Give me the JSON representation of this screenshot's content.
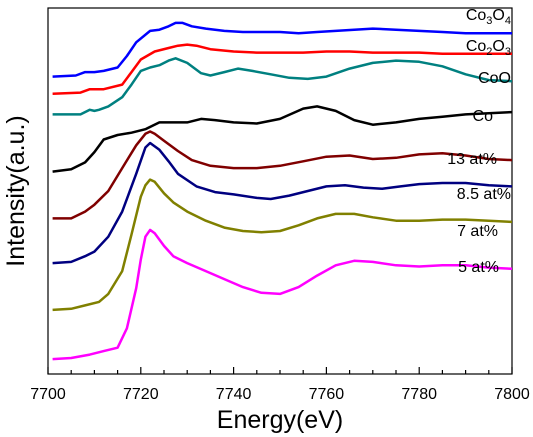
{
  "chart_data": {
    "type": "line",
    "title": "",
    "xlabel": "Energy(eV)",
    "ylabel": "Intensity(a.u.)",
    "xlim": [
      7700,
      7800
    ],
    "xticks": [
      7700,
      7720,
      7740,
      7760,
      7780,
      7800
    ],
    "y_tick_labels": "none",
    "grid": false,
    "legend": "inline labels at right",
    "series": [
      {
        "name": "Co3O4",
        "label_main": "Co",
        "label_sub": [
          "3",
          "4"
        ],
        "label_parts": [
          "Co",
          "3",
          "O",
          "4"
        ],
        "color": "#0000ff",
        "x": [
          7701,
          7706,
          7708,
          7709,
          7710,
          7712,
          7715,
          7717,
          7719,
          7722,
          7724,
          7726,
          7727.5,
          7729,
          7731,
          7734,
          7738,
          7742,
          7746,
          7750,
          7754,
          7758,
          7762,
          7766,
          7770,
          7775,
          7780,
          7785,
          7790,
          7795,
          7800
        ],
        "y": [
          0.4,
          0.41,
          0.44,
          0.44,
          0.44,
          0.45,
          0.48,
          0.58,
          0.7,
          0.8,
          0.81,
          0.84,
          0.87,
          0.87,
          0.84,
          0.82,
          0.8,
          0.79,
          0.79,
          0.79,
          0.78,
          0.79,
          0.8,
          0.81,
          0.82,
          0.81,
          0.8,
          0.79,
          0.78,
          0.78,
          0.78
        ]
      },
      {
        "name": "Co2O3",
        "label_main": "Co",
        "label_sub": [
          "2",
          "3"
        ],
        "label_parts": [
          "Co",
          "2",
          "O",
          "3"
        ],
        "color": "#ff0000",
        "x": [
          7701,
          7707,
          7709,
          7710,
          7712,
          7716,
          7718,
          7720,
          7723,
          7726,
          7728,
          7730,
          7732,
          7735,
          7740,
          7745,
          7750,
          7755,
          7760,
          7765,
          7770,
          7775,
          7780,
          7785,
          7790,
          7795,
          7800
        ],
        "y": [
          0.25,
          0.26,
          0.29,
          0.29,
          0.29,
          0.33,
          0.44,
          0.55,
          0.62,
          0.65,
          0.67,
          0.68,
          0.67,
          0.64,
          0.62,
          0.61,
          0.61,
          0.61,
          0.62,
          0.62,
          0.61,
          0.61,
          0.61,
          0.6,
          0.6,
          0.6,
          0.6
        ]
      },
      {
        "name": "CoO",
        "color": "#008080",
        "x": [
          7701,
          7707,
          7709,
          7710,
          7711,
          7713,
          7716,
          7718,
          7720,
          7722,
          7724,
          7726,
          7727.5,
          7730,
          7733,
          7735,
          7738,
          7741,
          7744,
          7748,
          7752,
          7756,
          7760,
          7765,
          7770,
          7775,
          7780,
          7785,
          7790,
          7795,
          7800
        ],
        "y": [
          0.07,
          0.07,
          0.11,
          0.1,
          0.11,
          0.14,
          0.22,
          0.33,
          0.45,
          0.48,
          0.5,
          0.54,
          0.56,
          0.52,
          0.43,
          0.41,
          0.44,
          0.47,
          0.45,
          0.42,
          0.39,
          0.38,
          0.4,
          0.47,
          0.52,
          0.54,
          0.53,
          0.49,
          0.42,
          0.37,
          0.36
        ]
      },
      {
        "name": "Co",
        "color": "#000000",
        "x": [
          7701,
          7705,
          7708,
          7710,
          7712,
          7715,
          7718,
          7721,
          7724,
          7727,
          7730,
          7733,
          7736,
          7740,
          7745,
          7750,
          7755,
          7758,
          7762,
          7766,
          7770,
          7775,
          7780,
          7785,
          7790,
          7795,
          7800
        ],
        "y": [
          -0.43,
          -0.41,
          -0.35,
          -0.26,
          -0.15,
          -0.11,
          -0.09,
          -0.06,
          0.0,
          0.0,
          0.0,
          0.03,
          0.02,
          0.0,
          -0.01,
          0.03,
          0.12,
          0.14,
          0.1,
          0.02,
          -0.02,
          0.0,
          0.03,
          0.05,
          0.07,
          0.08,
          0.09
        ]
      },
      {
        "name": "13 at%",
        "color": "#800000",
        "x": [
          7701,
          7705,
          7708,
          7710,
          7713,
          7716,
          7719,
          7721,
          7722,
          7723,
          7725,
          7728,
          7731,
          7735,
          7740,
          7745,
          7750,
          7755,
          7760,
          7765,
          7770,
          7775,
          7780,
          7785,
          7790,
          7795,
          7800
        ],
        "y": [
          -0.84,
          -0.84,
          -0.78,
          -0.72,
          -0.6,
          -0.4,
          -0.2,
          -0.1,
          -0.08,
          -0.1,
          -0.16,
          -0.25,
          -0.33,
          -0.38,
          -0.4,
          -0.4,
          -0.38,
          -0.34,
          -0.3,
          -0.29,
          -0.32,
          -0.31,
          -0.28,
          -0.27,
          -0.29,
          -0.32,
          -0.33
        ]
      },
      {
        "name": "8.5 at%",
        "color": "#000080",
        "x": [
          7701,
          7705,
          7708,
          7710,
          7713,
          7716,
          7719,
          7721,
          7722,
          7724,
          7726,
          7728,
          7732,
          7736,
          7740,
          7745,
          7748,
          7752,
          7756,
          7760,
          7764,
          7768,
          7772,
          7776,
          7780,
          7785,
          7790,
          7795,
          7800
        ],
        "y": [
          -1.23,
          -1.22,
          -1.17,
          -1.13,
          -1.0,
          -0.78,
          -0.45,
          -0.22,
          -0.18,
          -0.24,
          -0.34,
          -0.45,
          -0.56,
          -0.61,
          -0.63,
          -0.66,
          -0.67,
          -0.64,
          -0.6,
          -0.56,
          -0.55,
          -0.57,
          -0.58,
          -0.56,
          -0.54,
          -0.53,
          -0.53,
          -0.55,
          -0.56
        ]
      },
      {
        "name": "7 at%",
        "color": "#808000",
        "x": [
          7701,
          7705,
          7708,
          7711,
          7713,
          7716,
          7718,
          7720,
          7721,
          7722,
          7723,
          7725,
          7727,
          7730,
          7734,
          7738,
          7742,
          7746,
          7750,
          7754,
          7758,
          7762,
          7766,
          7770,
          7775,
          7780,
          7785,
          7790,
          7795,
          7800
        ],
        "y": [
          -1.64,
          -1.63,
          -1.6,
          -1.57,
          -1.5,
          -1.3,
          -0.98,
          -0.65,
          -0.55,
          -0.5,
          -0.52,
          -0.62,
          -0.7,
          -0.78,
          -0.86,
          -0.92,
          -0.95,
          -0.96,
          -0.95,
          -0.9,
          -0.84,
          -0.8,
          -0.8,
          -0.83,
          -0.86,
          -0.86,
          -0.85,
          -0.85,
          -0.86,
          -0.87
        ]
      },
      {
        "name": "5 at%",
        "color": "#ff00ff",
        "x": [
          7701,
          7705,
          7709,
          7712,
          7715,
          7717,
          7719,
          7720,
          7721,
          7722,
          7723,
          7725,
          7727,
          7730,
          7734,
          7738,
          7742,
          7746,
          7750,
          7754,
          7758,
          7762,
          7766,
          7770,
          7775,
          7780,
          7785,
          7790,
          7795,
          7800
        ],
        "y": [
          -2.07,
          -2.06,
          -2.03,
          -2.0,
          -1.97,
          -1.8,
          -1.45,
          -1.2,
          -1.0,
          -0.94,
          -0.97,
          -1.08,
          -1.17,
          -1.23,
          -1.3,
          -1.37,
          -1.44,
          -1.49,
          -1.5,
          -1.44,
          -1.34,
          -1.25,
          -1.21,
          -1.22,
          -1.25,
          -1.26,
          -1.25,
          -1.25,
          -1.27,
          -1.28
        ]
      }
    ]
  }
}
